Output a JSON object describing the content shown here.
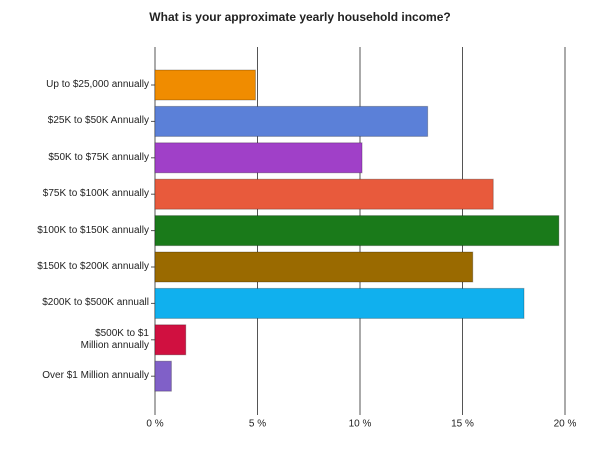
{
  "chart_data": {
    "type": "hbar",
    "title": "What is your approximate yearly household income?",
    "categories": [
      "Up to $25,000 annually",
      "$25K to $50K Annually",
      "$50K to $75K annually",
      "$75K to $100K annually",
      "$100K to $150K annually",
      "$150K to $200K annually",
      "$200K to $500K annuall",
      "$500K to $1\nMillion annually",
      "Over $1 Million annually"
    ],
    "values": [
      4.9,
      13.3,
      10.1,
      16.5,
      19.7,
      15.5,
      18.0,
      1.5,
      0.8
    ],
    "colors": [
      "#f08c00",
      "#5b80d8",
      "#a040c8",
      "#e85a3c",
      "#1a7a1a",
      "#9a6a00",
      "#10b0ee",
      "#d01040",
      "#8060c8"
    ],
    "xlim": [
      0,
      20
    ],
    "xticks": [
      {
        "value": 0,
        "label": "0 %"
      },
      {
        "value": 5,
        "label": "5 %"
      },
      {
        "value": 10,
        "label": "10 %"
      },
      {
        "value": 15,
        "label": "15 %"
      },
      {
        "value": 20,
        "label": "20 %"
      }
    ],
    "grid": true
  }
}
